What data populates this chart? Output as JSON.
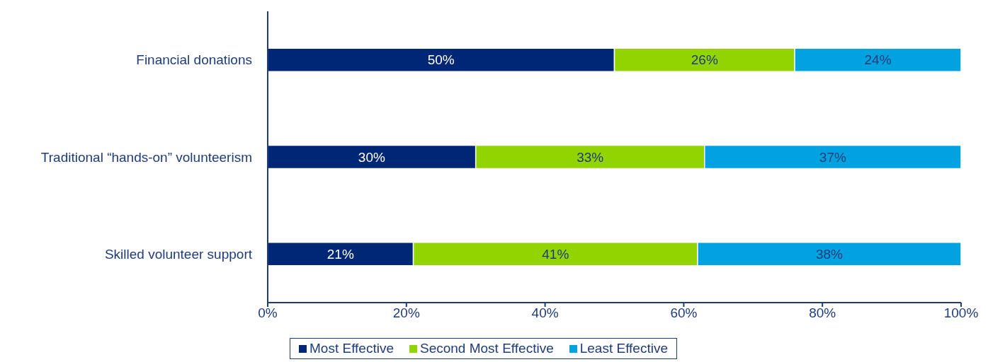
{
  "chart_data": {
    "type": "bar",
    "orientation": "horizontal",
    "stacked": true,
    "categories": [
      "Financial donations",
      "Traditional “hands-on” volunteerism",
      "Skilled volunteer support"
    ],
    "series": [
      {
        "name": "Most Effective",
        "color": "#002776",
        "values": [
          50,
          30,
          21
        ],
        "value_labels": [
          "50%",
          "30%",
          "21%"
        ]
      },
      {
        "name": "Second Most Effective",
        "color": "#92d400",
        "values": [
          26,
          33,
          41
        ],
        "value_labels": [
          "26%",
          "33%",
          "41%"
        ]
      },
      {
        "name": "Least Effective",
        "color": "#00a3e0",
        "values": [
          24,
          37,
          38
        ],
        "value_labels": [
          "24%",
          "37%",
          "38%"
        ]
      }
    ],
    "xlim": [
      0,
      100
    ],
    "xticks": [
      {
        "value": 0,
        "label": "0%"
      },
      {
        "value": 20,
        "label": "20%"
      },
      {
        "value": 40,
        "label": "40%"
      },
      {
        "value": 60,
        "label": "60%"
      },
      {
        "value": 80,
        "label": "80%"
      },
      {
        "value": 100,
        "label": "100%"
      }
    ],
    "grid": false,
    "legend": "bottom"
  }
}
